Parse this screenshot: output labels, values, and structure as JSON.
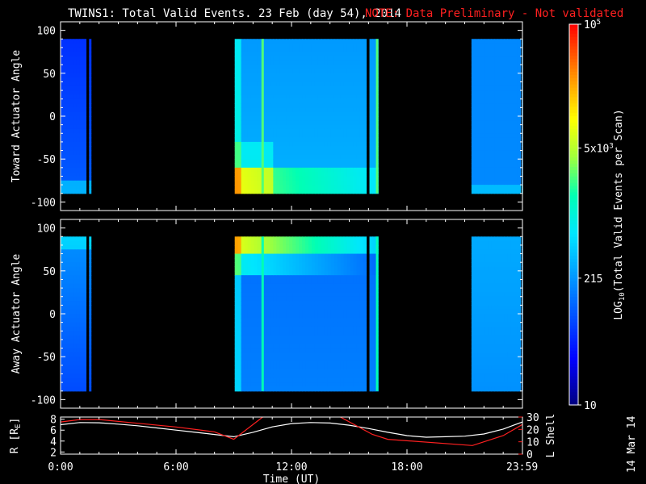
{
  "title": {
    "main": "TWINS1: Total Valid Events. 23 Feb (day  54), 2014",
    "note": "NOTE: Data Preliminary - Not validated"
  },
  "colors": {
    "note": "#ff2020",
    "background": "#000000",
    "foreground": "#ffffff",
    "lshell_line": "#ff2020",
    "r_line": "#ffffff"
  },
  "footer": {
    "date_stamp": "14 Mar 14"
  },
  "chart_data": [
    {
      "type": "heatmap",
      "name_key": "toward",
      "ylabel": "Toward Actuator Angle",
      "ylim": [
        -110,
        110
      ],
      "yticks": [
        100,
        50,
        0,
        -50,
        -100
      ],
      "xlim_hours": [
        0,
        24
      ],
      "data_blocks_hours": [
        [
          0.0,
          1.32
        ],
        [
          1.48,
          1.58
        ],
        [
          9.05,
          15.88
        ],
        [
          16.05,
          16.5
        ],
        [
          21.35,
          23.9
        ],
        [
          23.96,
          24.0
        ]
      ],
      "angle_range": [
        -90,
        90
      ],
      "bright_stripes_hours": [
        10.5,
        16.45
      ],
      "log_intensity": {
        "baseline": 2.15,
        "note": "enhanced near -90 deg in middle block"
      }
    },
    {
      "type": "heatmap",
      "name_key": "away",
      "ylabel": "Away Actuator Angle",
      "ylim": [
        -110,
        110
      ],
      "yticks": [
        100,
        50,
        0,
        -50,
        -100
      ],
      "xlim_hours": [
        0,
        24
      ],
      "data_blocks_hours": [
        [
          0.0,
          1.32
        ],
        [
          1.48,
          1.58
        ],
        [
          9.05,
          15.88
        ],
        [
          16.05,
          16.5
        ],
        [
          21.35,
          23.9
        ],
        [
          23.96,
          24.0
        ]
      ],
      "angle_range": [
        -90,
        90
      ],
      "bright_stripes_hours": [
        10.5,
        16.45
      ],
      "log_intensity": {
        "baseline": 2.2,
        "note": "saturated near +90 deg in middle block"
      }
    },
    {
      "type": "line",
      "name_key": "orbit",
      "xlabel": "Time (UT)",
      "xticks": [
        "0:00",
        "6:00",
        "12:00",
        "18:00",
        "23:59"
      ],
      "xtick_hours": [
        0,
        6,
        12,
        18,
        23.983
      ],
      "left_axis": {
        "label": "R [RE]",
        "label_base": "R [R",
        "label_sub": "E",
        "label_end": "]",
        "ticks": [
          2,
          4,
          6,
          8
        ],
        "ylim": [
          1.6,
          8.4
        ]
      },
      "right_axis": {
        "label": "L Shell",
        "ticks": [
          0,
          10,
          20,
          30
        ],
        "ylim": [
          0,
          30
        ]
      },
      "series": [
        {
          "axis": "left",
          "x": [
            0,
            1,
            2,
            3,
            4,
            5,
            6,
            7,
            8,
            9,
            10,
            11,
            12,
            13,
            14,
            15,
            16,
            17,
            18,
            19,
            20,
            21,
            22,
            23,
            24
          ],
          "y": [
            7.0,
            7.4,
            7.35,
            7.1,
            6.8,
            6.4,
            6.0,
            5.6,
            5.2,
            4.8,
            5.6,
            6.6,
            7.2,
            7.4,
            7.3,
            6.9,
            6.3,
            5.6,
            5.0,
            4.7,
            4.8,
            4.9,
            5.3,
            6.2,
            7.5
          ]
        },
        {
          "axis": "right",
          "x": [
            0,
            1,
            2,
            4,
            6,
            8,
            9.0,
            10.5,
            11.0,
            14.3,
            16.2,
            17.0,
            21.4,
            23.0,
            24.0
          ],
          "y": [
            26,
            28,
            28,
            25,
            22,
            18,
            12,
            30,
            32,
            32,
            16,
            12,
            7,
            15,
            24
          ]
        }
      ]
    }
  ],
  "colorbar": {
    "label": "LOG10(Total Valid Events per Scan)",
    "label_base": "LOG",
    "label_sub": "10",
    "label_rest": "(Total Valid Events per Scan)",
    "ticks": [
      {
        "log": 5.0,
        "label_base": "10",
        "label_sup": "5"
      },
      {
        "log": 3.699,
        "label_base": "5x10",
        "label_sup": "3"
      },
      {
        "log": 2.332,
        "label": "215"
      },
      {
        "log": 1.0,
        "label": "10"
      }
    ],
    "range_log": [
      1.0,
      5.0
    ]
  }
}
